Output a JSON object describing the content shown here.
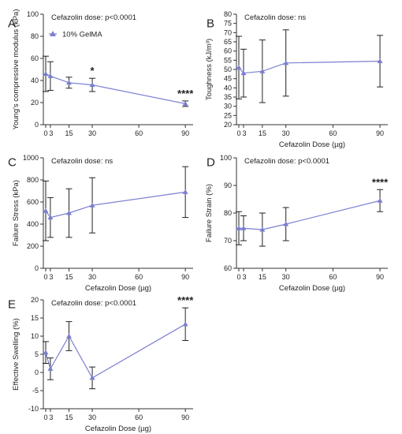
{
  "chart_data": [
    {
      "panel": "A",
      "type": "line",
      "annotation": "Cefazolin dose: p<0.0001",
      "legend": "10% GelMA",
      "xlabel": "",
      "ylabel": "Young's compressive modulus (kPa)",
      "x_ticks": [
        0,
        3,
        15,
        30,
        60,
        90
      ],
      "x_tick_labels": [
        "0",
        "3",
        "15",
        "30",
        "60",
        "90"
      ],
      "ylim": [
        0,
        100
      ],
      "y_ticks": [
        0,
        20,
        40,
        60,
        80,
        100
      ],
      "y_tick_labels": [
        "0",
        "20",
        "40",
        "60",
        "80",
        "100"
      ],
      "x": [
        0,
        3,
        15,
        30,
        90
      ],
      "y": [
        46,
        44,
        38,
        36,
        19
      ],
      "err": [
        16,
        13,
        5,
        6,
        2.5
      ],
      "sig": [
        {
          "x": 30,
          "label": "*"
        },
        {
          "x": 90,
          "label": "****"
        }
      ]
    },
    {
      "panel": "B",
      "type": "line",
      "annotation": "Cefazolin dose: ns",
      "xlabel": "Cefazolin Dose (µg)",
      "ylabel": "Toughness (kJ/m³)",
      "x_ticks": [
        0,
        3,
        15,
        30,
        60,
        90
      ],
      "x_tick_labels": [
        "0",
        "3",
        "15",
        "30",
        "60",
        "90"
      ],
      "ylim": [
        20,
        80
      ],
      "y_ticks": [
        20,
        25,
        30,
        35,
        40,
        45,
        50,
        55,
        60,
        65,
        70,
        75,
        80
      ],
      "y_tick_labels": [
        "20",
        "25",
        "30",
        "35",
        "40",
        "45",
        "50",
        "55",
        "60",
        "65",
        "70",
        "75",
        "80"
      ],
      "x": [
        0,
        3,
        15,
        30,
        90
      ],
      "y": [
        51,
        48,
        49,
        53.5,
        54.5
      ],
      "err": [
        17,
        13,
        17,
        18,
        14
      ],
      "sig": []
    },
    {
      "panel": "C",
      "type": "line",
      "annotation": "Cefazolin dose: ns",
      "xlabel": "Cefazolin Dose (µg)",
      "ylabel": "Failure Stress (kPa)",
      "x_ticks": [
        0,
        3,
        15,
        30,
        60,
        90
      ],
      "x_tick_labels": [
        "0",
        "3",
        "15",
        "30",
        "60",
        "90"
      ],
      "ylim": [
        0,
        1000
      ],
      "y_ticks": [
        0,
        200,
        400,
        600,
        800,
        1000
      ],
      "y_tick_labels": [
        "0",
        "200",
        "400",
        "600",
        "800",
        "1000"
      ],
      "x": [
        0,
        3,
        15,
        30,
        90
      ],
      "y": [
        520,
        460,
        500,
        570,
        690
      ],
      "err": [
        270,
        180,
        220,
        250,
        230
      ],
      "sig": []
    },
    {
      "panel": "D",
      "type": "line",
      "annotation": "Cefazolin dose: p<0.0001",
      "xlabel": "Cefazolin Dose (µg)",
      "ylabel": "Failure Strain (%)",
      "x_ticks": [
        0,
        3,
        15,
        30,
        60,
        90
      ],
      "x_tick_labels": [
        "0",
        "3",
        "15",
        "30",
        "60",
        "90"
      ],
      "ylim": [
        60,
        100
      ],
      "y_ticks": [
        60,
        70,
        80,
        90,
        100
      ],
      "y_tick_labels": [
        "60",
        "70",
        "80",
        "90",
        "100"
      ],
      "x": [
        0,
        3,
        15,
        30,
        90
      ],
      "y": [
        74.5,
        74.5,
        74,
        76,
        84.5
      ],
      "err": [
        6,
        4.5,
        6,
        6,
        4
      ],
      "sig": [
        {
          "x": 90,
          "label": "****"
        }
      ]
    },
    {
      "panel": "E",
      "type": "line",
      "annotation": "Cefazolin dose: p<0.0001",
      "xlabel": "Cefazolin Dose (µg)",
      "ylabel": "Effective Swelling (%)",
      "x_ticks": [
        0,
        3,
        15,
        30,
        60,
        90
      ],
      "x_tick_labels": [
        "0",
        "3",
        "15",
        "30",
        "60",
        "90"
      ],
      "ylim": [
        -10,
        20
      ],
      "y_ticks": [
        -10,
        -5,
        0,
        5,
        10,
        15,
        20
      ],
      "y_tick_labels": [
        "-10",
        "-5",
        "0",
        "5",
        "10",
        "15",
        "20"
      ],
      "x": [
        0,
        3,
        15,
        30,
        90
      ],
      "y": [
        5.5,
        1,
        10,
        -1.5,
        13.3
      ],
      "err": [
        3,
        3,
        4,
        3,
        4.5
      ],
      "sig": [
        {
          "x": 90,
          "label": "****"
        }
      ]
    }
  ],
  "colors": {
    "series": "#7b7fd0",
    "axis": "#333333",
    "error_bar": "#222222"
  }
}
